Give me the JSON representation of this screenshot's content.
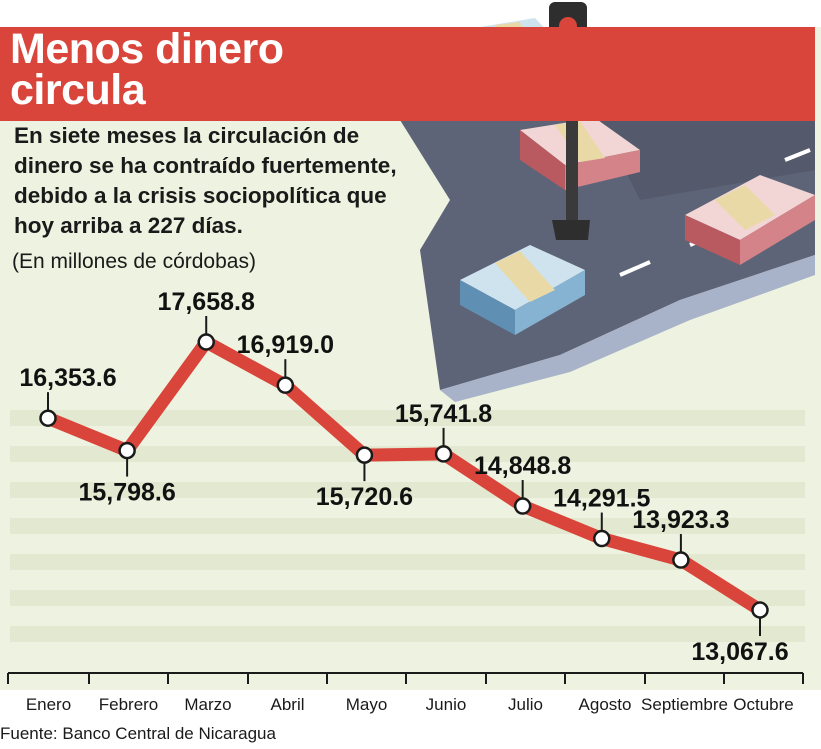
{
  "title": "Menos dinero circula",
  "subtitle": "En siete meses la circulación de dinero se ha contraído fuertemente, debido a la crisis sociopolítica que hoy arriba a 227 días.",
  "units_note": "(En millones de córdobas)",
  "source": "Fuente: Banco Central de Nicaragua",
  "colors": {
    "line": "#d9453a",
    "background": "#eef2e0",
    "stripe": "#e3e9d0",
    "road": "#5e6478",
    "road_edge": "#a8b3c9",
    "traffic_light_pole": "#3a3a3a"
  },
  "chart_data": {
    "type": "line",
    "categories": [
      "Enero",
      "Febrero",
      "Marzo",
      "Abril",
      "Mayo",
      "Junio",
      "Julio",
      "Agosto",
      "Septiembre",
      "Octubre"
    ],
    "values": [
      16353.6,
      15798.6,
      17658.8,
      16919.0,
      15720.6,
      15741.8,
      14848.8,
      14291.5,
      13923.3,
      13067.6
    ],
    "value_labels": [
      "16,353.6",
      "15,798.6",
      "17,658.8",
      "16,919.0",
      "15,720.6",
      "15,741.8",
      "14,848.8",
      "14,291.5",
      "13,923.3",
      "13,067.6"
    ],
    "label_placement": [
      "above",
      "below",
      "above",
      "above",
      "below",
      "above",
      "above",
      "above",
      "above",
      "below"
    ],
    "title": "Menos dinero circula",
    "xlabel": "",
    "ylabel": "",
    "grid": "horizontal stripes"
  }
}
